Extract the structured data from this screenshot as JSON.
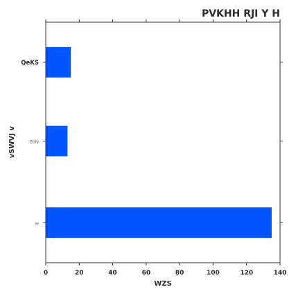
{
  "chart_data": {
    "type": "bar",
    "orientation": "horizontal",
    "title": "PVKHH RJI Y H",
    "xlabel": "WZS",
    "ylabel": "vSWVJ v",
    "categories": [
      "QeKS",
      "EGFy",
      "Jw"
    ],
    "category_label_styles": [
      "bold-large",
      "small",
      "small"
    ],
    "values": [
      15,
      13,
      135
    ],
    "xlim": [
      0,
      140
    ],
    "xticks": [
      0,
      20,
      40,
      60,
      80,
      100,
      120,
      140
    ],
    "grid": false,
    "legend": "none",
    "bar_color": "#0055ff"
  }
}
